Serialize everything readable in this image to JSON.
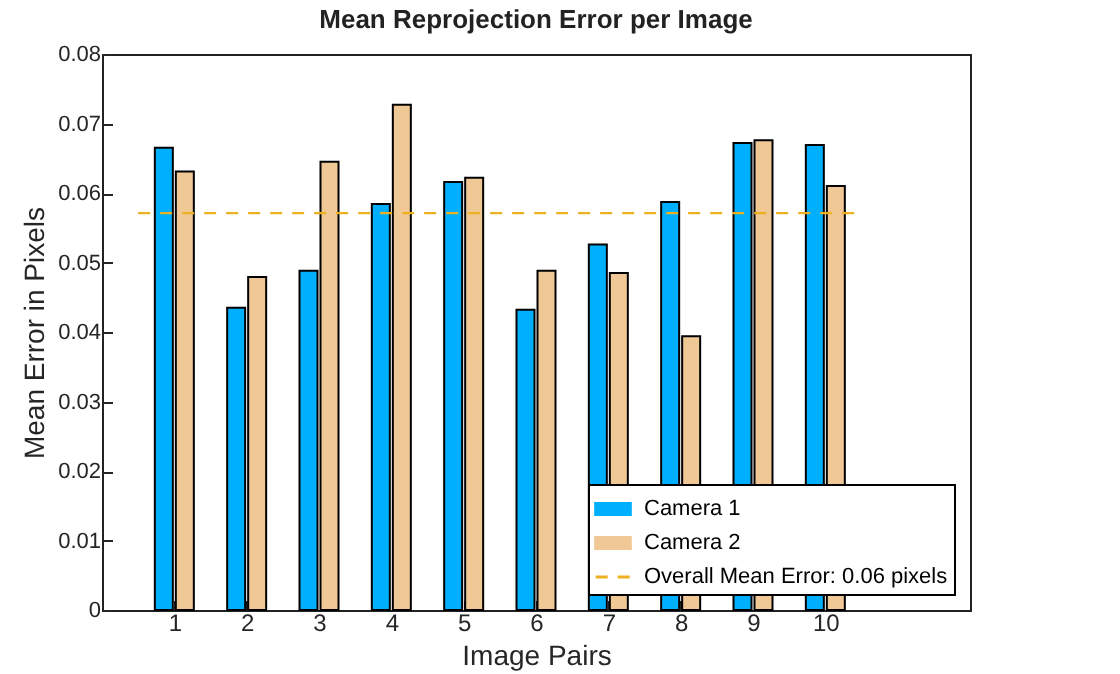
{
  "chart_data": {
    "type": "bar",
    "title": "Mean Reprojection Error per Image",
    "xlabel": "Image Pairs",
    "ylabel": "Mean Error in Pixels",
    "x": [
      1,
      2,
      3,
      4,
      5,
      6,
      7,
      8,
      9,
      10
    ],
    "series": [
      {
        "name": "Camera 1",
        "color": "#00b0ff",
        "values": [
          0.0665,
          0.0435,
          0.0488,
          0.0584,
          0.0616,
          0.0432,
          0.0526,
          0.0587,
          0.0672,
          0.0669
        ]
      },
      {
        "name": "Camera 2",
        "color": "#f0c896",
        "values": [
          0.0631,
          0.0479,
          0.0645,
          0.0727,
          0.0622,
          0.0488,
          0.0485,
          0.0394,
          0.0676,
          0.061
        ]
      }
    ],
    "ref_lines": [
      {
        "axis": "y",
        "value": 0.0571,
        "label": "Overall Mean Error: 0.06 pixels",
        "color": "#edb120",
        "line_style": "dashed"
      }
    ],
    "xlim": [
      0,
      12
    ],
    "xticks": [
      1,
      2,
      3,
      4,
      5,
      6,
      7,
      8,
      9,
      10
    ],
    "ylim": [
      0,
      0.08
    ],
    "yticks": [
      0,
      0.01,
      0.02,
      0.03,
      0.04,
      0.05,
      0.06,
      0.07,
      0.08
    ],
    "grid": false,
    "legend": "bottom right"
  }
}
